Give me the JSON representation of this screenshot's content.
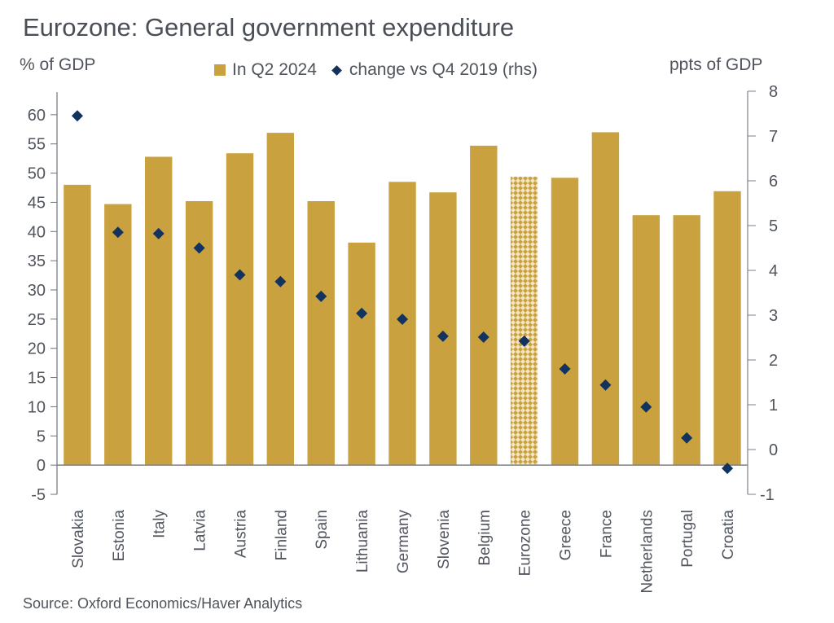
{
  "chart_data": {
    "type": "bar",
    "title": "Eurozone: General government expenditure",
    "ylabel": "% of GDP",
    "ylabel_right": "ppts of GDP",
    "ylim": [
      -5,
      65
    ],
    "yticks": [
      -5,
      0,
      5,
      10,
      15,
      20,
      25,
      30,
      35,
      40,
      45,
      50,
      55,
      60
    ],
    "ylim_right": [
      -1,
      8
    ],
    "yticks_right": [
      -1,
      0,
      1,
      2,
      3,
      4,
      5,
      6,
      7,
      8
    ],
    "categories": [
      "Slovakia",
      "Estonia",
      "Italy",
      "Latvia",
      "Austria",
      "Finland",
      "Spain",
      "Lithuania",
      "Germany",
      "Slovenia",
      "Belgium",
      "Eurozone",
      "Greece",
      "France",
      "Netherlands",
      "Portugal",
      "Croatia"
    ],
    "highlighted_category": "Eurozone",
    "series": [
      {
        "name": "In Q2 2024",
        "type": "bar",
        "axis": "left",
        "color": "#C9A23F",
        "values": [
          48.0,
          44.7,
          52.8,
          45.2,
          53.4,
          56.9,
          45.2,
          38.1,
          48.5,
          46.7,
          54.7,
          49.4,
          49.2,
          57.0,
          42.8,
          42.8,
          46.9
        ]
      },
      {
        "name": "change vs Q4 2019 (rhs)",
        "type": "scatter",
        "marker": "diamond",
        "axis": "right",
        "color": "#12325F",
        "values": [
          7.45,
          4.85,
          4.82,
          4.5,
          3.9,
          3.75,
          3.42,
          3.04,
          2.91,
          2.53,
          2.51,
          2.42,
          1.8,
          1.44,
          0.95,
          0.26,
          -0.42
        ]
      }
    ],
    "legend": [
      "In Q2 2024",
      "change vs Q4 2019 (rhs)"
    ],
    "legend_position": "top-center",
    "grid": false,
    "source": "Source: Oxford Economics/Haver Analytics"
  }
}
